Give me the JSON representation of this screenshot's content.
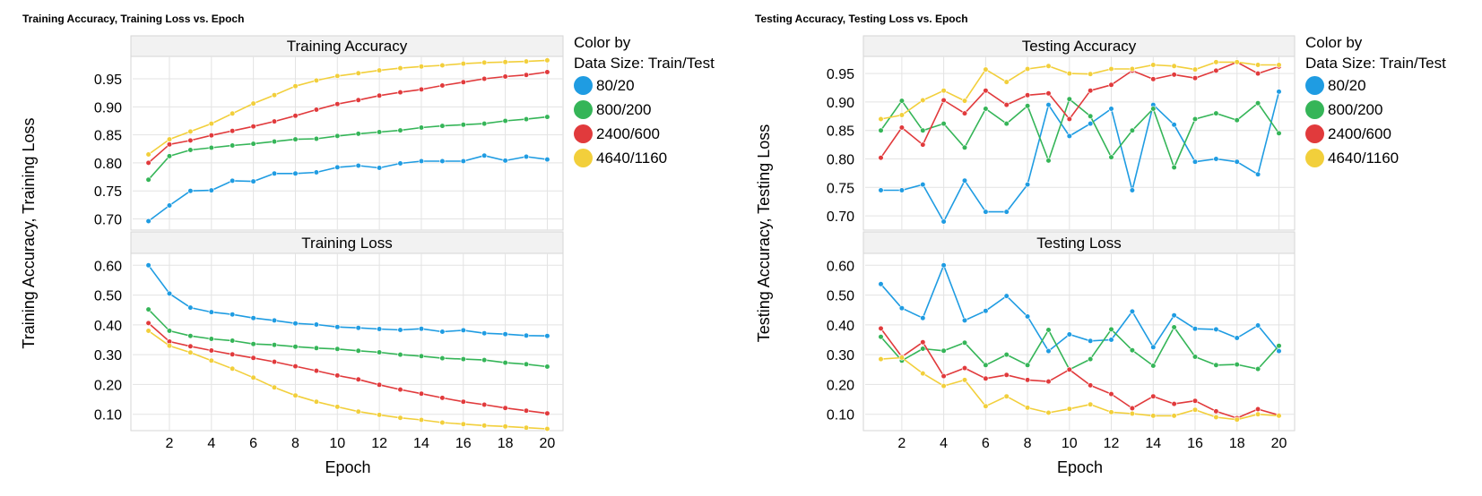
{
  "colors": {
    "80/20": "#1f9ce2",
    "800/200": "#35b558",
    "2400/600": "#e13a3c",
    "4640/1160": "#f2cf3b"
  },
  "chart_data": [
    {
      "type": "line",
      "title": "Training Accuracy, Training Loss vs. Epoch",
      "xlabel": "Epoch",
      "ylabel": "Training Accuracy, Training Loss",
      "legend": {
        "title_line1": "Color by",
        "title_line2": "Data Size: Train/Test",
        "placement": "right",
        "entries": [
          "80/20",
          "800/200",
          "2400/600",
          "4640/1160"
        ]
      },
      "x": [
        1,
        2,
        3,
        4,
        5,
        6,
        7,
        8,
        9,
        10,
        11,
        12,
        13,
        14,
        15,
        16,
        17,
        18,
        19,
        20
      ],
      "x_ticks": [
        2,
        4,
        6,
        8,
        10,
        12,
        14,
        16,
        18,
        20
      ],
      "grid": true,
      "panels": [
        {
          "title": "Training Accuracy",
          "ylim": [
            0.68,
            0.99
          ],
          "y_ticks": [
            0.7,
            0.75,
            0.8,
            0.85,
            0.9,
            0.95
          ],
          "y_tick_labels": [
            "0.70",
            "0.75",
            "0.80",
            "0.85",
            "0.90",
            "0.95"
          ],
          "series": [
            {
              "name": "80/20",
              "values": [
                0.696,
                0.724,
                0.75,
                0.751,
                0.768,
                0.767,
                0.781,
                0.781,
                0.783,
                0.792,
                0.795,
                0.791,
                0.799,
                0.803,
                0.803,
                0.803,
                0.813,
                0.804,
                0.811,
                0.806
              ]
            },
            {
              "name": "800/200",
              "values": [
                0.77,
                0.812,
                0.823,
                0.827,
                0.831,
                0.834,
                0.838,
                0.842,
                0.843,
                0.848,
                0.852,
                0.855,
                0.858,
                0.863,
                0.866,
                0.868,
                0.87,
                0.875,
                0.878,
                0.882
              ]
            },
            {
              "name": "2400/600",
              "values": [
                0.8,
                0.833,
                0.84,
                0.849,
                0.857,
                0.865,
                0.874,
                0.884,
                0.895,
                0.905,
                0.912,
                0.92,
                0.926,
                0.931,
                0.938,
                0.944,
                0.95,
                0.954,
                0.957,
                0.962
              ]
            },
            {
              "name": "4640/1160",
              "values": [
                0.815,
                0.842,
                0.856,
                0.87,
                0.888,
                0.906,
                0.921,
                0.937,
                0.947,
                0.955,
                0.96,
                0.965,
                0.969,
                0.972,
                0.974,
                0.977,
                0.979,
                0.98,
                0.981,
                0.983
              ]
            }
          ]
        },
        {
          "title": "Training Loss",
          "ylim": [
            0.045,
            0.64
          ],
          "y_ticks": [
            0.1,
            0.2,
            0.3,
            0.4,
            0.5,
            0.6
          ],
          "y_tick_labels": [
            "0.10",
            "0.20",
            "0.30",
            "0.40",
            "0.50",
            "0.60"
          ],
          "series": [
            {
              "name": "80/20",
              "values": [
                0.6,
                0.505,
                0.458,
                0.443,
                0.435,
                0.423,
                0.415,
                0.405,
                0.401,
                0.393,
                0.39,
                0.386,
                0.383,
                0.387,
                0.377,
                0.382,
                0.372,
                0.369,
                0.364,
                0.363
              ]
            },
            {
              "name": "800/200",
              "values": [
                0.452,
                0.38,
                0.363,
                0.353,
                0.347,
                0.336,
                0.333,
                0.327,
                0.322,
                0.319,
                0.313,
                0.308,
                0.3,
                0.295,
                0.288,
                0.285,
                0.282,
                0.273,
                0.268,
                0.26
              ]
            },
            {
              "name": "2400/600",
              "values": [
                0.406,
                0.344,
                0.328,
                0.314,
                0.301,
                0.289,
                0.276,
                0.261,
                0.246,
                0.23,
                0.217,
                0.199,
                0.183,
                0.169,
                0.155,
                0.142,
                0.132,
                0.121,
                0.112,
                0.103
              ]
            },
            {
              "name": "4640/1160",
              "values": [
                0.38,
                0.33,
                0.307,
                0.28,
                0.253,
                0.223,
                0.19,
                0.163,
                0.142,
                0.125,
                0.109,
                0.098,
                0.088,
                0.081,
                0.072,
                0.067,
                0.062,
                0.059,
                0.055,
                0.051
              ]
            }
          ]
        }
      ]
    },
    {
      "type": "line",
      "title": "Testing Accuracy, Testing Loss vs. Epoch",
      "xlabel": "Epoch",
      "ylabel": "Testing Accuracy, Testing Loss",
      "legend": {
        "title_line1": "Color by",
        "title_line2": "Data Size: Train/Test",
        "placement": "right",
        "entries": [
          "80/20",
          "800/200",
          "2400/600",
          "4640/1160"
        ]
      },
      "x": [
        1,
        2,
        3,
        4,
        5,
        6,
        7,
        8,
        9,
        10,
        11,
        12,
        13,
        14,
        15,
        16,
        17,
        18,
        19,
        20
      ],
      "x_ticks": [
        2,
        4,
        6,
        8,
        10,
        12,
        14,
        16,
        18,
        20
      ],
      "grid": true,
      "panels": [
        {
          "title": "Testing Accuracy",
          "ylim": [
            0.675,
            0.98
          ],
          "y_ticks": [
            0.7,
            0.75,
            0.8,
            0.85,
            0.9,
            0.95
          ],
          "y_tick_labels": [
            "0.70",
            "0.75",
            "0.80",
            "0.85",
            "0.90",
            "0.95"
          ],
          "series": [
            {
              "name": "80/20",
              "values": [
                0.745,
                0.745,
                0.755,
                0.69,
                0.762,
                0.707,
                0.707,
                0.755,
                0.895,
                0.84,
                0.862,
                0.888,
                0.745,
                0.895,
                0.86,
                0.795,
                0.8,
                0.795,
                0.773,
                0.918
              ]
            },
            {
              "name": "800/200",
              "values": [
                0.85,
                0.902,
                0.85,
                0.862,
                0.82,
                0.888,
                0.862,
                0.893,
                0.797,
                0.905,
                0.875,
                0.803,
                0.85,
                0.888,
                0.785,
                0.87,
                0.88,
                0.868,
                0.898,
                0.845
              ]
            },
            {
              "name": "2400/600",
              "values": [
                0.802,
                0.855,
                0.825,
                0.903,
                0.88,
                0.92,
                0.895,
                0.912,
                0.915,
                0.87,
                0.92,
                0.93,
                0.955,
                0.94,
                0.948,
                0.942,
                0.955,
                0.97,
                0.95,
                0.962
              ]
            },
            {
              "name": "4640/1160",
              "values": [
                0.87,
                0.877,
                0.903,
                0.92,
                0.902,
                0.957,
                0.935,
                0.958,
                0.963,
                0.95,
                0.949,
                0.958,
                0.958,
                0.965,
                0.963,
                0.957,
                0.97,
                0.97,
                0.965,
                0.965
              ]
            }
          ]
        },
        {
          "title": "Testing Loss",
          "ylim": [
            0.045,
            0.64
          ],
          "y_ticks": [
            0.1,
            0.2,
            0.3,
            0.4,
            0.5,
            0.6
          ],
          "y_tick_labels": [
            "0.10",
            "0.20",
            "0.30",
            "0.40",
            "0.50",
            "0.60"
          ],
          "series": [
            {
              "name": "80/20",
              "values": [
                0.537,
                0.456,
                0.423,
                0.6,
                0.415,
                0.447,
                0.497,
                0.428,
                0.312,
                0.368,
                0.346,
                0.35,
                0.445,
                0.325,
                0.432,
                0.387,
                0.385,
                0.356,
                0.398,
                0.312
              ]
            },
            {
              "name": "800/200",
              "values": [
                0.36,
                0.28,
                0.32,
                0.313,
                0.34,
                0.265,
                0.3,
                0.265,
                0.383,
                0.25,
                0.285,
                0.385,
                0.315,
                0.263,
                0.392,
                0.293,
                0.265,
                0.267,
                0.252,
                0.33
              ]
            },
            {
              "name": "2400/600",
              "values": [
                0.388,
                0.293,
                0.342,
                0.228,
                0.255,
                0.22,
                0.232,
                0.215,
                0.21,
                0.25,
                0.197,
                0.168,
                0.12,
                0.16,
                0.135,
                0.145,
                0.11,
                0.087,
                0.117,
                0.097
              ]
            },
            {
              "name": "4640/1160",
              "values": [
                0.285,
                0.29,
                0.237,
                0.195,
                0.215,
                0.127,
                0.16,
                0.122,
                0.105,
                0.118,
                0.133,
                0.107,
                0.102,
                0.095,
                0.095,
                0.115,
                0.09,
                0.082,
                0.1,
                0.095
              ]
            }
          ]
        }
      ]
    }
  ]
}
